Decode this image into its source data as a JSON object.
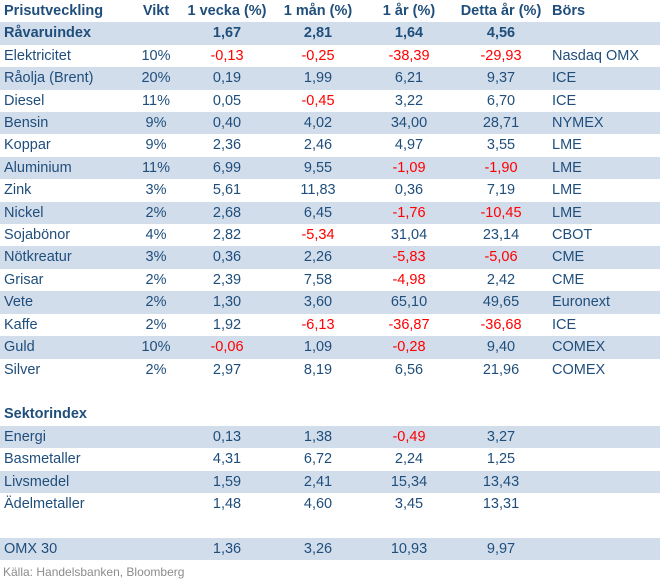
{
  "colors": {
    "header_text": "#1F4E7B",
    "body_text": "#1F4E7B",
    "negative_value": "#FF0000",
    "row_band": "#D2DDEC",
    "source_text": "#8C8C8C",
    "background": "#FFFFFF"
  },
  "table": {
    "headers": [
      "Prisutveckling",
      "Vikt",
      "1 vecka (%)",
      "1 mån (%)",
      "1 år (%)",
      "Detta år (%)",
      "Börs"
    ],
    "column_keys": [
      "name",
      "weight",
      "week-pct",
      "month-pct",
      "year-pct",
      "ytd-pct",
      "exchange"
    ],
    "rows": [
      {
        "cells": [
          "Råvaruindex",
          "",
          "1,67",
          "2,81",
          "1,64",
          "4,56",
          ""
        ],
        "bold": true,
        "band": true
      },
      {
        "cells": [
          "Elektricitet",
          "10%",
          "-0,13",
          "-0,25",
          "-38,39",
          "-29,93",
          "Nasdaq OMX"
        ],
        "band": false
      },
      {
        "cells": [
          "Råolja (Brent)",
          "20%",
          "0,19",
          "1,99",
          "6,21",
          "9,37",
          "ICE"
        ],
        "band": true
      },
      {
        "cells": [
          "Diesel",
          "11%",
          "0,05",
          "-0,45",
          "3,22",
          "6,70",
          "ICE"
        ],
        "band": false
      },
      {
        "cells": [
          "Bensin",
          "9%",
          "0,40",
          "4,02",
          "34,00",
          "28,71",
          "NYMEX"
        ],
        "band": true
      },
      {
        "cells": [
          "Koppar",
          "9%",
          "2,36",
          "2,46",
          "4,97",
          "3,55",
          "LME"
        ],
        "band": false
      },
      {
        "cells": [
          "Aluminium",
          "11%",
          "6,99",
          "9,55",
          "-1,09",
          "-1,90",
          "LME"
        ],
        "band": true
      },
      {
        "cells": [
          "Zink",
          "3%",
          "5,61",
          "11,83",
          "0,36",
          "7,19",
          "LME"
        ],
        "band": false
      },
      {
        "cells": [
          "Nickel",
          "2%",
          "2,68",
          "6,45",
          "-1,76",
          "-10,45",
          "LME"
        ],
        "band": true
      },
      {
        "cells": [
          "Sojabönor",
          "4%",
          "2,82",
          "-5,34",
          "31,04",
          "23,14",
          "CBOT"
        ],
        "band": false
      },
      {
        "cells": [
          "Nötkreatur",
          "3%",
          "0,36",
          "2,26",
          "-5,83",
          "-5,06",
          "CME"
        ],
        "band": true
      },
      {
        "cells": [
          "Grisar",
          "2%",
          "2,39",
          "7,58",
          "-4,98",
          "2,42",
          "CME"
        ],
        "band": false
      },
      {
        "cells": [
          "Vete",
          "2%",
          "1,30",
          "3,60",
          "65,10",
          "49,65",
          "Euronext"
        ],
        "band": true
      },
      {
        "cells": [
          "Kaffe",
          "2%",
          "1,92",
          "-6,13",
          "-36,87",
          "-36,68",
          "ICE"
        ],
        "band": false
      },
      {
        "cells": [
          "Guld",
          "10%",
          "-0,06",
          "1,09",
          "-0,28",
          "9,40",
          "COMEX"
        ],
        "band": true
      },
      {
        "cells": [
          "Silver",
          "2%",
          "2,97",
          "8,19",
          "6,56",
          "21,96",
          "COMEX"
        ],
        "band": false
      },
      {
        "spacer": true
      },
      {
        "cells": [
          "Sektorindex",
          "",
          "",
          "",
          "",
          "",
          ""
        ],
        "bold": true,
        "band": false
      },
      {
        "cells": [
          "Energi",
          "",
          "0,13",
          "1,38",
          "-0,49",
          "3,27",
          ""
        ],
        "band": true
      },
      {
        "cells": [
          "Basmetaller",
          "",
          "4,31",
          "6,72",
          "2,24",
          "1,25",
          ""
        ],
        "band": false
      },
      {
        "cells": [
          "Livsmedel",
          "",
          "1,59",
          "2,41",
          "15,34",
          "13,43",
          ""
        ],
        "band": true
      },
      {
        "cells": [
          "Ädelmetaller",
          "",
          "1,48",
          "4,60",
          "3,45",
          "13,31",
          ""
        ],
        "band": false
      },
      {
        "spacer": true
      },
      {
        "cells": [
          "OMX 30",
          "",
          "1,36",
          "3,26",
          "10,93",
          "9,97",
          ""
        ],
        "band": true
      }
    ]
  },
  "source_note": "Källa: Handelsbanken, Bloomberg"
}
